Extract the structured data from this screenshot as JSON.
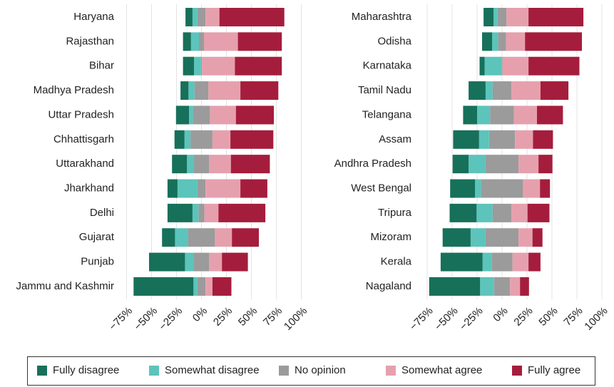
{
  "chart_data": {
    "type": "diverging_bar",
    "categories": [
      "Haryana",
      "Rajasthan",
      "Bihar",
      "Madhya Pradesh",
      "Uttar Pradesh",
      "Chhattisgarh",
      "Uttarakhand",
      "Jharkhand",
      "Delhi",
      "Gujarat",
      "Punjab",
      "Jammu and Kashmir",
      "Maharashtra",
      "Odisha",
      "Karnataka",
      "Tamil Nadu",
      "Telangana",
      "Assam",
      "Andhra Pradesh",
      "West Bengal",
      "Tripura",
      "Mizoram",
      "Kerala",
      "Nagaland"
    ],
    "series": [
      {
        "name": "Fully disagree",
        "color": "#17705a",
        "values": [
          7,
          8,
          11,
          8,
          13,
          10,
          15,
          10,
          25,
          13,
          36,
          60,
          10,
          10,
          5,
          17,
          14,
          26,
          16,
          25,
          27,
          28,
          42,
          51
        ]
      },
      {
        "name": "Somewhat disagree",
        "color": "#5cc4bb",
        "values": [
          5,
          8,
          7,
          6,
          4,
          6,
          7,
          20,
          6,
          13,
          9,
          4,
          4,
          6,
          17,
          7,
          13,
          10,
          17,
          6,
          16,
          15,
          9,
          14
        ]
      },
      {
        "name": "No opinion",
        "color": "#9b9b9b",
        "values": [
          8,
          5,
          1,
          14,
          17,
          22,
          15,
          8,
          6,
          27,
          15,
          8,
          9,
          8,
          1,
          19,
          24,
          26,
          33,
          42,
          19,
          33,
          21,
          16
        ]
      },
      {
        "name": "Somewhat agree",
        "color": "#e6a0ad",
        "values": [
          14,
          34,
          33,
          32,
          26,
          18,
          22,
          35,
          14,
          17,
          13,
          7,
          22,
          19,
          26,
          29,
          23,
          18,
          20,
          17,
          16,
          14,
          16,
          10
        ]
      },
      {
        "name": "Fully agree",
        "color": "#a51d3c",
        "values": [
          65,
          44,
          47,
          38,
          38,
          43,
          39,
          27,
          47,
          27,
          26,
          19,
          55,
          57,
          51,
          28,
          26,
          20,
          14,
          10,
          22,
          10,
          12,
          9
        ]
      }
    ],
    "xlim": [
      -75,
      100
    ],
    "xticks": [
      {
        "value": -75,
        "label": "−75%"
      },
      {
        "value": -50,
        "label": "−50%"
      },
      {
        "value": -25,
        "label": "−25%"
      },
      {
        "value": 0,
        "label": "0%"
      },
      {
        "value": 25,
        "label": "25%"
      },
      {
        "value": 50,
        "label": "50%"
      },
      {
        "value": 75,
        "label": "75%"
      },
      {
        "value": 100,
        "label": "100%"
      }
    ],
    "grid": true,
    "legend": "bottom"
  }
}
